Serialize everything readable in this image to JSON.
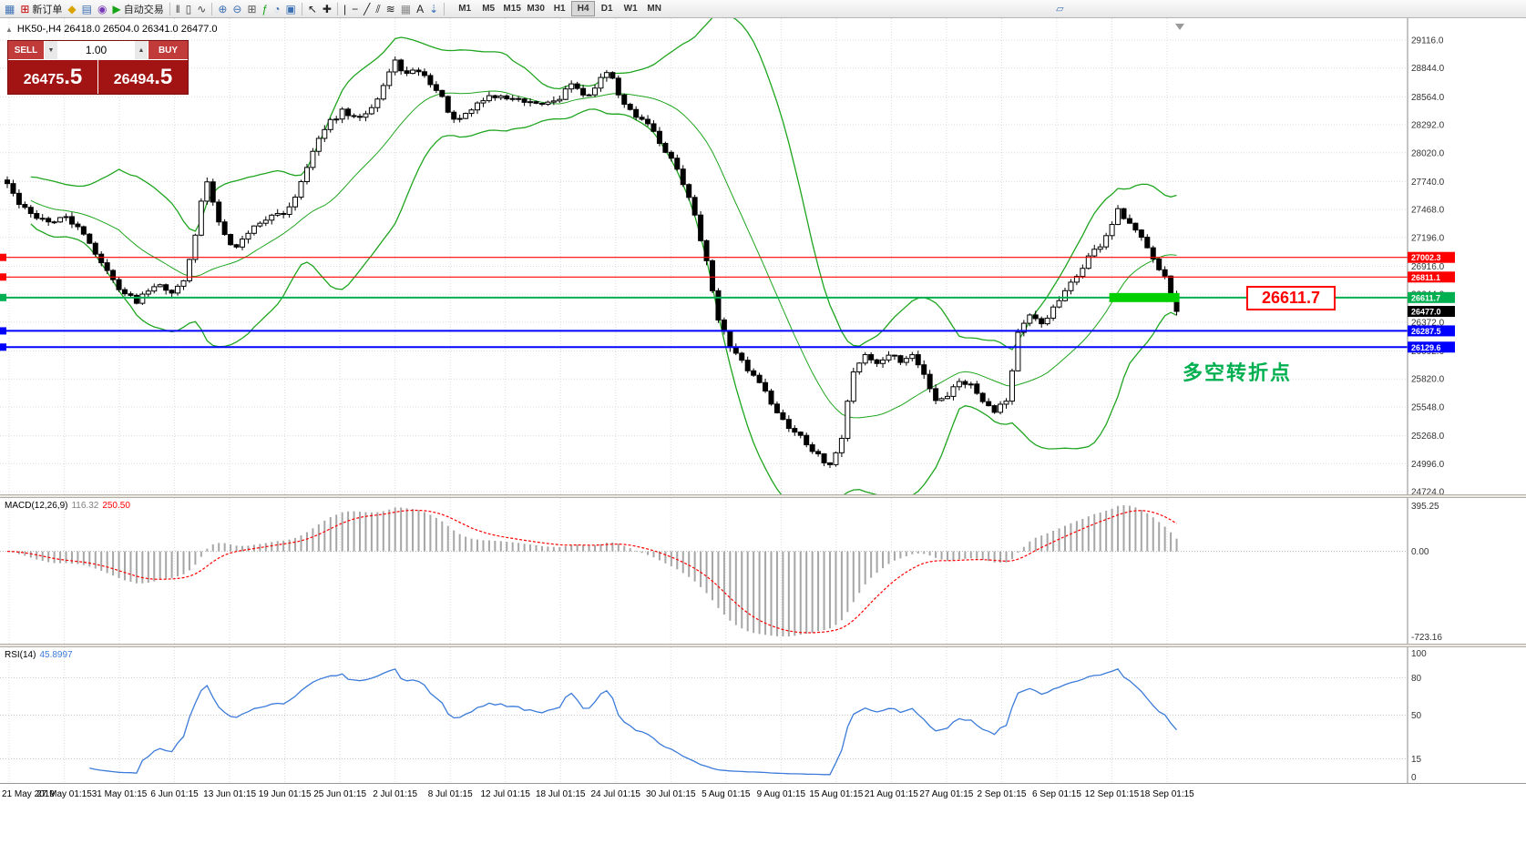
{
  "colors": {
    "grid": "#dcdcdc",
    "candle_up": "#ffffff",
    "candle_down": "#000000",
    "candle_border": "#000000",
    "bollinger": "#1fa51f",
    "macd_hist": "#a6a6a6",
    "macd_signal": "#ff0000",
    "rsi_line": "#3c7bd9",
    "axis_text": "#333333",
    "panel_red": "#a21414",
    "accent_green": "#00b050",
    "key_level_red": "#ff0000"
  },
  "toolbar": {
    "items": [
      {
        "name": "new-chart-icon",
        "glyph": "▦",
        "color": "#3b6fb3"
      },
      {
        "name": "new-order-button",
        "glyph": "⊞",
        "color": "#c00000",
        "label": "新订单"
      },
      {
        "name": "favorites-icon",
        "glyph": "◆",
        "color": "#d9a400"
      },
      {
        "name": "profiles-icon",
        "glyph": "▤",
        "color": "#3b6fb3"
      },
      {
        "name": "refresh-icon",
        "glyph": "◉",
        "color": "#7a3db8"
      },
      {
        "name": "autotrading-button",
        "glyph": "▶",
        "color": "#16a316",
        "label": "自动交易"
      },
      {
        "sep": true
      },
      {
        "name": "bars-chart-icon",
        "glyph": "‖",
        "color": "#444444"
      },
      {
        "name": "candles-chart-icon",
        "glyph": "▯",
        "color": "#444444"
      },
      {
        "name": "line-chart-icon",
        "glyph": "∿",
        "color": "#444444"
      },
      {
        "sep": true
      },
      {
        "name": "zoom-in-icon",
        "glyph": "⊕",
        "color": "#3b6fb3"
      },
      {
        "name": "zoom-out-icon",
        "glyph": "⊖",
        "color": "#3b6fb3"
      },
      {
        "name": "tile-windows-icon",
        "glyph": "⊞",
        "color": "#555555"
      },
      {
        "name": "indicators-icon",
        "glyph": "ƒ",
        "color": "#16a316"
      },
      {
        "name": "periods-icon",
        "glyph": "◔",
        "color": "#3b6fb3"
      },
      {
        "name": "templates-icon",
        "glyph": "▣",
        "color": "#3b6fb3"
      },
      {
        "sep": true
      },
      {
        "name": "cursor-icon",
        "glyph": "↖",
        "color": "#222222"
      },
      {
        "name": "crosshair-icon",
        "glyph": "✚",
        "color": "#222222"
      },
      {
        "sep": true
      },
      {
        "name": "vertical-line-icon",
        "glyph": "|",
        "color": "#222222"
      },
      {
        "name": "horizontal-line-icon",
        "glyph": "−",
        "color": "#222222"
      },
      {
        "name": "trendline-icon",
        "glyph": "╱",
        "color": "#222222"
      },
      {
        "name": "channel-icon",
        "glyph": "⫽",
        "color": "#222222"
      },
      {
        "name": "fibonacci-icon",
        "glyph": "≋",
        "color": "#222222"
      },
      {
        "name": "grid-icon",
        "glyph": "▦",
        "color": "#888888"
      },
      {
        "name": "text-label-icon",
        "glyph": "A",
        "color": "#222222"
      },
      {
        "name": "arrows-icon",
        "glyph": "⇣",
        "color": "#3b6fb3"
      },
      {
        "sep": true
      }
    ],
    "timeframes": [
      "M1",
      "M5",
      "M15",
      "M30",
      "H1",
      "H4",
      "D1",
      "W1",
      "MN"
    ],
    "active_timeframe": "H4",
    "right_icon": {
      "name": "docking-icon",
      "glyph": "▱",
      "color": "#3b6fb3"
    }
  },
  "symbol_info": {
    "collapse_icon": "▲",
    "text": "HK50-,H4 26418.0 26504.0 26341.0 26477.0"
  },
  "trade_panel": {
    "sell_label": "SELL",
    "buy_label": "BUY",
    "volume": "1.00",
    "volume_down": "▼",
    "volume_up": "▲",
    "sell_price_main": "26475",
    "sell_price_frac": ".5",
    "buy_price_main": "26494",
    "buy_price_frac": ".5"
  },
  "annotations": {
    "key_level_label": "26611.7",
    "turning_point_text": "多空转折点"
  },
  "indicator_labels": {
    "macd_name": "MACD(12,26,9)",
    "macd_main_value": "116.32",
    "macd_signal_value": "250.50",
    "rsi_name": "RSI(14)",
    "rsi_value": "45.8997"
  },
  "chart_data": {
    "type": "candlestick",
    "symbol": "HK50-",
    "timeframe": "H4",
    "ohlc_current": {
      "open": 26418.0,
      "high": 26504.0,
      "low": 26341.0,
      "close": 26477.0
    },
    "price_range": [
      24724.0,
      29116.0
    ],
    "price_axis_ticks": [
      29116.0,
      28844.0,
      28564.0,
      28292.0,
      28020.0,
      27740.0,
      27468.0,
      27196.0,
      26916.0,
      26644.0,
      26372.0,
      26092.0,
      25820.0,
      25548.0,
      25268.0,
      24996.0,
      24724.0
    ],
    "time_axis_ticks": [
      "21 May 2019",
      "27 May 01:15",
      "31 May 01:15",
      "6 Jun 01:15",
      "13 Jun 01:15",
      "19 Jun 01:15",
      "25 Jun 01:15",
      "2 Jul 01:15",
      "8 Jul 01:15",
      "12 Jul 01:15",
      "18 Jul 01:15",
      "24 Jul 01:15",
      "30 Jul 01:15",
      "5 Aug 01:15",
      "9 Aug 01:15",
      "15 Aug 01:15",
      "21 Aug 01:15",
      "27 Aug 01:15",
      "2 Sep 01:15",
      "6 Sep 01:15",
      "12 Sep 01:15",
      "18 Sep 01:15"
    ],
    "num_candles": 200,
    "close_waypoints": [
      [
        0,
        27720
      ],
      [
        2,
        27520
      ],
      [
        4,
        27420
      ],
      [
        6,
        27380
      ],
      [
        8,
        27340
      ],
      [
        10,
        27400
      ],
      [
        12,
        27280
      ],
      [
        14,
        27150
      ],
      [
        16,
        26950
      ],
      [
        18,
        26780
      ],
      [
        20,
        26650
      ],
      [
        22,
        26580
      ],
      [
        24,
        26700
      ],
      [
        26,
        26760
      ],
      [
        28,
        26640
      ],
      [
        30,
        26800
      ],
      [
        32,
        27200
      ],
      [
        33,
        27550
      ],
      [
        34,
        27720
      ],
      [
        35,
        27550
      ],
      [
        36,
        27350
      ],
      [
        38,
        27150
      ],
      [
        39,
        27100
      ],
      [
        41,
        27250
      ],
      [
        43,
        27350
      ],
      [
        45,
        27400
      ],
      [
        47,
        27420
      ],
      [
        49,
        27600
      ],
      [
        51,
        27900
      ],
      [
        53,
        28150
      ],
      [
        55,
        28320
      ],
      [
        57,
        28420
      ],
      [
        59,
        28350
      ],
      [
        61,
        28420
      ],
      [
        63,
        28550
      ],
      [
        65,
        28800
      ],
      [
        66,
        28900
      ],
      [
        68,
        28780
      ],
      [
        70,
        28820
      ],
      [
        72,
        28700
      ],
      [
        74,
        28550
      ],
      [
        76,
        28320
      ],
      [
        78,
        28380
      ],
      [
        80,
        28500
      ],
      [
        82,
        28570
      ],
      [
        84,
        28560
      ],
      [
        86,
        28550
      ],
      [
        88,
        28500
      ],
      [
        90,
        28480
      ],
      [
        92,
        28510
      ],
      [
        94,
        28560
      ],
      [
        96,
        28700
      ],
      [
        98,
        28560
      ],
      [
        100,
        28650
      ],
      [
        102,
        28820
      ],
      [
        103,
        28720
      ],
      [
        105,
        28480
      ],
      [
        107,
        28380
      ],
      [
        109,
        28320
      ],
      [
        111,
        28120
      ],
      [
        113,
        27960
      ],
      [
        115,
        27720
      ],
      [
        117,
        27420
      ],
      [
        119,
        26950
      ],
      [
        121,
        26420
      ],
      [
        123,
        26120
      ],
      [
        125,
        25980
      ],
      [
        127,
        25850
      ],
      [
        129,
        25720
      ],
      [
        131,
        25480
      ],
      [
        133,
        25350
      ],
      [
        135,
        25280
      ],
      [
        137,
        25130
      ],
      [
        139,
        25000
      ],
      [
        140,
        24960
      ],
      [
        141,
        25120
      ],
      [
        142,
        25260
      ],
      [
        143,
        25600
      ],
      [
        144,
        25900
      ],
      [
        146,
        26060
      ],
      [
        148,
        25960
      ],
      [
        150,
        26060
      ],
      [
        152,
        25990
      ],
      [
        154,
        26050
      ],
      [
        156,
        25860
      ],
      [
        158,
        25620
      ],
      [
        160,
        25660
      ],
      [
        162,
        25810
      ],
      [
        164,
        25760
      ],
      [
        166,
        25620
      ],
      [
        168,
        25520
      ],
      [
        170,
        25620
      ],
      [
        171,
        25900
      ],
      [
        172,
        26280
      ],
      [
        174,
        26420
      ],
      [
        176,
        26360
      ],
      [
        178,
        26500
      ],
      [
        180,
        26660
      ],
      [
        182,
        26820
      ],
      [
        184,
        27010
      ],
      [
        186,
        27120
      ],
      [
        188,
        27320
      ],
      [
        189,
        27450
      ],
      [
        190,
        27380
      ],
      [
        192,
        27250
      ],
      [
        194,
        27120
      ],
      [
        196,
        26900
      ],
      [
        197,
        26820
      ],
      [
        198,
        26640
      ],
      [
        199,
        26477
      ]
    ],
    "hlines": [
      {
        "price": 27002.3,
        "label": "27002.3",
        "color": "#ff0000",
        "width": 1.2
      },
      {
        "price": 26811.1,
        "label": "26811.1",
        "color": "#ff0000",
        "width": 1.2
      },
      {
        "price": 26611.7,
        "label": "26611.7",
        "color": "#00b050",
        "width": 2
      },
      {
        "price": 26287.5,
        "label": "26287.5",
        "color": "#0000ff",
        "width": 2
      },
      {
        "price": 26129.6,
        "label": "26129.6",
        "color": "#0000ff",
        "width": 2
      }
    ],
    "current_price": {
      "value": 26477.0,
      "label": "26477.0",
      "color": "#000000"
    },
    "highlight_bar": {
      "price": 26611.7,
      "from_index": 188,
      "to_index": 199,
      "thickness": 10,
      "color": "#00d000"
    },
    "bollinger": {
      "period": 20,
      "deviation": 2.2
    },
    "macd": {
      "fast": 12,
      "slow": 26,
      "signal": 9,
      "axis_labels": [
        "395.25",
        "0.00",
        "-723.16"
      ]
    },
    "rsi": {
      "period": 14,
      "levels": [
        80,
        50,
        15
      ],
      "axis_top": "100",
      "axis_bottom": "0"
    }
  }
}
